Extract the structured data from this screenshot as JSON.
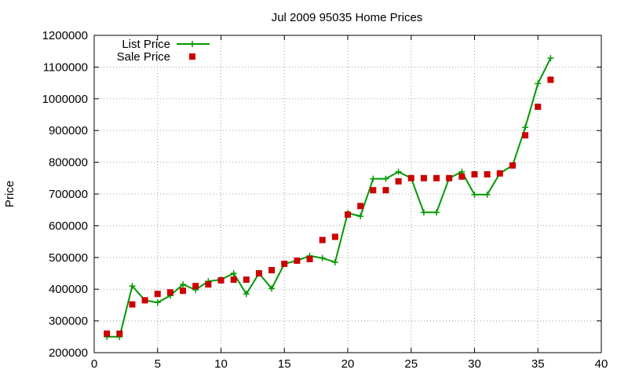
{
  "chart_data": {
    "type": "line",
    "title": "Jul 2009 95035 Home Prices",
    "xlabel": "",
    "ylabel": "Price",
    "xlim": [
      0,
      40
    ],
    "ylim": [
      200000,
      1200000
    ],
    "xticks": [
      0,
      5,
      10,
      15,
      20,
      25,
      30,
      35,
      40
    ],
    "yticks": [
      200000,
      300000,
      400000,
      500000,
      600000,
      700000,
      800000,
      900000,
      1000000,
      1100000,
      1200000
    ],
    "grid": true,
    "legend_position": "top-left",
    "series": [
      {
        "name": "List Price",
        "style": "line+cross",
        "color": "#009900",
        "x": [
          1,
          2,
          3,
          4,
          5,
          6,
          7,
          8,
          9,
          10,
          11,
          12,
          13,
          14,
          15,
          16,
          17,
          18,
          19,
          20,
          21,
          22,
          23,
          24,
          25,
          26,
          27,
          28,
          29,
          30,
          31,
          32,
          33,
          34,
          35,
          36
        ],
        "y": [
          250000,
          250000,
          410000,
          365000,
          358000,
          380000,
          415000,
          398000,
          425000,
          430000,
          450000,
          385000,
          450000,
          402000,
          480000,
          490000,
          505000,
          498000,
          485000,
          640000,
          630000,
          748000,
          748000,
          770000,
          750000,
          642000,
          642000,
          750000,
          770000,
          698000,
          698000,
          765000,
          790000,
          910000,
          1048000,
          1128000
        ]
      },
      {
        "name": "Sale Price",
        "style": "square",
        "color": "#cc0000",
        "x": [
          1,
          2,
          3,
          4,
          5,
          6,
          7,
          8,
          9,
          10,
          11,
          12,
          13,
          14,
          15,
          16,
          17,
          18,
          19,
          20,
          21,
          22,
          23,
          24,
          25,
          26,
          27,
          28,
          29,
          30,
          31,
          32,
          33,
          34,
          35,
          36
        ],
        "y": [
          260000,
          260000,
          352000,
          365000,
          385000,
          390000,
          395000,
          410000,
          415000,
          428000,
          430000,
          430000,
          450000,
          460000,
          480000,
          490000,
          495000,
          555000,
          565000,
          635000,
          662000,
          712000,
          712000,
          740000,
          750000,
          750000,
          750000,
          750000,
          755000,
          762000,
          762000,
          765000,
          790000,
          885000,
          975000,
          1060000
        ]
      }
    ]
  }
}
